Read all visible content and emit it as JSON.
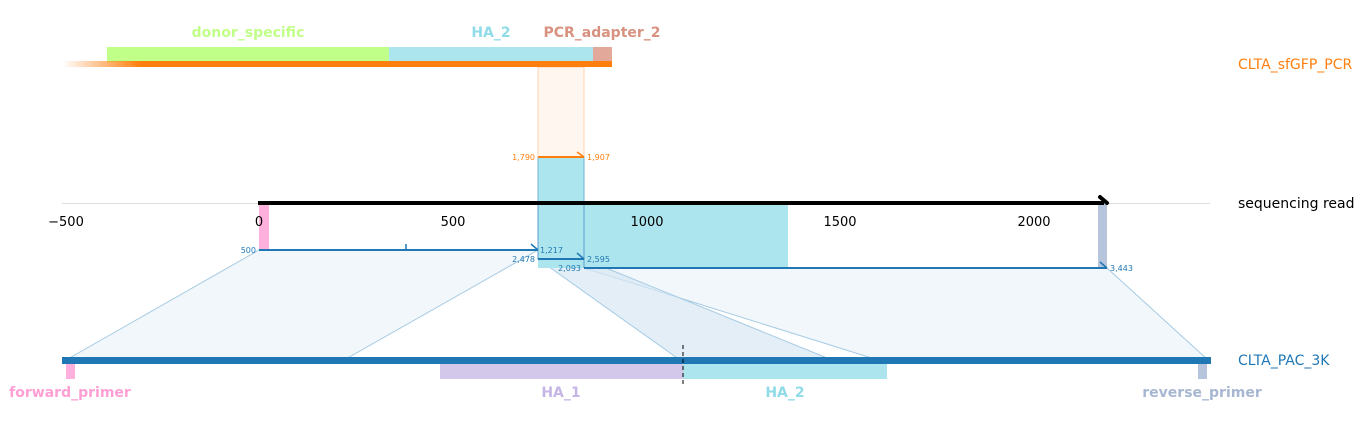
{
  "tracks": {
    "pcr": {
      "name": "CLTA_sfGFP_PCR",
      "color": "#ff7f0e"
    },
    "read": {
      "name": "sequencing read",
      "color": "#000000"
    },
    "ref": {
      "name": "CLTA_PAC_3K",
      "color": "#1f77b4"
    }
  },
  "read_axis": {
    "ticks": [
      "−500",
      "0",
      "500",
      "1000",
      "1500",
      "2000"
    ]
  },
  "top_features": [
    {
      "name": "donor_specific",
      "color": "#c0ff88"
    },
    {
      "name": "HA_2",
      "color": "#ade5ee"
    },
    {
      "name": "PCR_adapter_2",
      "color": "#e2a99b"
    }
  ],
  "bottom_features": [
    {
      "name": "forward_primer",
      "color": "#ffb0dc"
    },
    {
      "name": "HA_1",
      "color": "#d3c7ea"
    },
    {
      "name": "HA_2",
      "color": "#ade5ee"
    },
    {
      "name": "reverse_primer",
      "color": "#b7c5dc"
    }
  ],
  "alignments": {
    "pcr": {
      "start": "1,790",
      "end": "1,907"
    },
    "ref1": {
      "start": "500",
      "end": "1,217"
    },
    "ref2": {
      "start": "2,478",
      "end": "2,595"
    },
    "ref3": {
      "start": "2,093",
      "end": "3,443"
    }
  }
}
